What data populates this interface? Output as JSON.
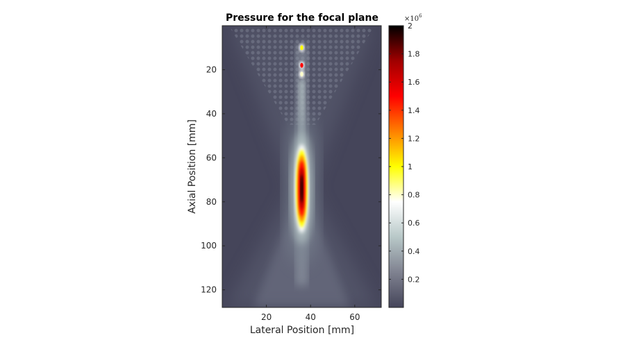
{
  "chart_data": {
    "type": "heatmap",
    "title": "Pressure for the focal plane",
    "xlabel": "Lateral Position [mm]",
    "ylabel": "Axial Position [mm]",
    "xlim": [
      0,
      72
    ],
    "ylim": [
      128,
      0
    ],
    "y_direction": "reversed",
    "x_ticks": [
      20,
      40,
      60
    ],
    "y_ticks": [
      20,
      40,
      60,
      80,
      100,
      120
    ],
    "colorbar": {
      "min": 0,
      "max": 2,
      "ticks": [
        0.2,
        0.4,
        0.6,
        0.8,
        1,
        1.2,
        1.4,
        1.6,
        1.8,
        2
      ],
      "tick_labels": [
        "0.2",
        "0.4",
        "0.6",
        "0.8",
        "1",
        "1.2",
        "1.4",
        "1.6",
        "1.8",
        "2"
      ],
      "multiplier": "×10",
      "exponent": "6",
      "colormap": [
        "#45455a",
        "#7f8290",
        "#b8c8c8",
        "#ffffff",
        "#ffff00",
        "#ff8000",
        "#ff0000",
        "#a00000",
        "#000000"
      ]
    },
    "focus": {
      "lateral_mm": 36,
      "axial_mm": 74,
      "peak": 2.0
    },
    "near_field_peaks": [
      {
        "lateral_mm": 36,
        "axial_mm": 10,
        "value": 1.25
      },
      {
        "lateral_mm": 36,
        "axial_mm": 18,
        "value": 1.75
      },
      {
        "lateral_mm": 36,
        "axial_mm": 22,
        "value": 1.05
      }
    ]
  }
}
